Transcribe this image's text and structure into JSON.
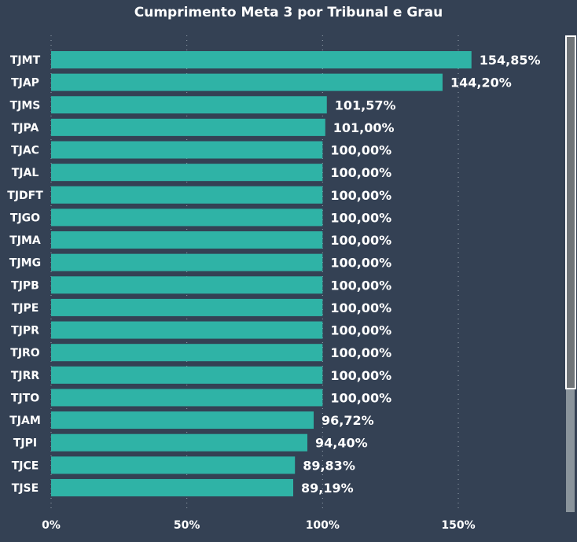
{
  "chart_data": {
    "type": "bar",
    "orientation": "horizontal",
    "title": "Cumprimento Meta 3 por Tribunal e Grau",
    "xlabel": "",
    "ylabel": "",
    "xlim": [
      0,
      160
    ],
    "x_ticks": [
      0,
      50,
      100,
      150
    ],
    "x_tick_labels": [
      "0%",
      "50%",
      "100%",
      "150%"
    ],
    "grid": "vertical dotted",
    "categories": [
      "TJMT",
      "TJAP",
      "TJMS",
      "TJPA",
      "TJAC",
      "TJAL",
      "TJDFT",
      "TJGO",
      "TJMA",
      "TJMG",
      "TJPB",
      "TJPE",
      "TJPR",
      "TJRO",
      "TJRR",
      "TJTO",
      "TJAM",
      "TJPI",
      "TJCE",
      "TJSE"
    ],
    "values": [
      154.85,
      144.2,
      101.57,
      101.0,
      100.0,
      100.0,
      100.0,
      100.0,
      100.0,
      100.0,
      100.0,
      100.0,
      100.0,
      100.0,
      100.0,
      100.0,
      96.72,
      94.4,
      89.83,
      89.19
    ],
    "data_labels": [
      "154,85%",
      "144,20%",
      "101,57%",
      "101,00%",
      "100,00%",
      "100,00%",
      "100,00%",
      "100,00%",
      "100,00%",
      "100,00%",
      "100,00%",
      "100,00%",
      "100,00%",
      "100,00%",
      "100,00%",
      "100,00%",
      "96,72%",
      "94,40%",
      "89,83%",
      "89,19%"
    ],
    "bar_color": "#2fb3a6"
  }
}
